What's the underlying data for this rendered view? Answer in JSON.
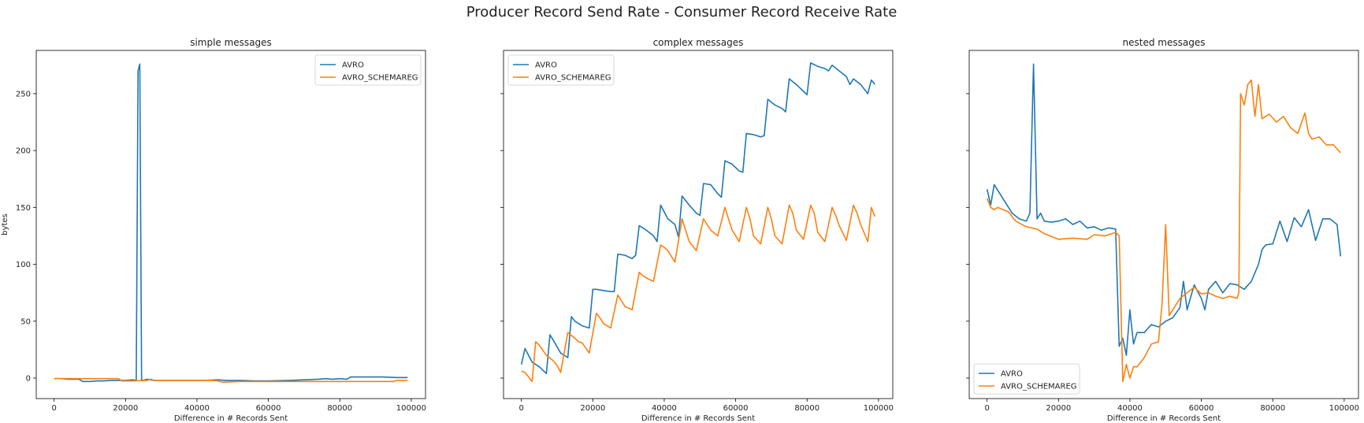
{
  "title": "Producer Record Send Rate - Consumer Record Receive Rate",
  "colors": {
    "AVRO": "#1f77b4",
    "AVRO_SCHEMAREG": "#ff7f0e"
  },
  "chart_data": [
    {
      "type": "line",
      "title": "simple messages",
      "xlabel": "Difference in # Records Sent",
      "ylabel": "bytes",
      "xlim": [
        -5000,
        104000
      ],
      "ylim": [
        -18,
        288
      ],
      "xticks": [
        0,
        20000,
        40000,
        60000,
        80000,
        100000
      ],
      "yticks": [
        0,
        50,
        100,
        150,
        200,
        250
      ],
      "show_ytick_labels": true,
      "legend": "top-right",
      "series": [
        {
          "name": "AVRO",
          "x": [
            0,
            2000,
            4000,
            6000,
            7000,
            8000,
            10000,
            12000,
            14000,
            16000,
            18000,
            20000,
            22000,
            23000,
            23500,
            24000,
            24500,
            25000,
            26000,
            28000,
            30000,
            34000,
            38000,
            42000,
            46000,
            48000,
            52000,
            56000,
            60000,
            66000,
            70000,
            74000,
            76000,
            78000,
            80000,
            82000,
            83000,
            84000,
            88000,
            92000,
            96000,
            99000
          ],
          "y": [
            -0.5,
            -0.5,
            -1,
            -1,
            -1,
            -3,
            -3,
            -2.5,
            -2.5,
            -2,
            -2,
            -2,
            -1.5,
            -2,
            270,
            276,
            -1.5,
            -2,
            -1,
            -2,
            -2,
            -2,
            -2,
            -2,
            -1.5,
            -2,
            -2,
            -2.5,
            -2.5,
            -2,
            -1.5,
            -1,
            -0.5,
            -1,
            -0.5,
            -1,
            1,
            1,
            1,
            1,
            0.5,
            0.5
          ]
        },
        {
          "name": "AVRO_SCHEMAREG",
          "x": [
            0,
            4000,
            8000,
            12000,
            16000,
            18000,
            19000,
            22000,
            26000,
            27000,
            28000,
            32000,
            36000,
            40000,
            44000,
            46000,
            47000,
            48000,
            52000,
            56000,
            60000,
            66000,
            72000,
            78000,
            84000,
            90000,
            95000,
            96000,
            99000
          ],
          "y": [
            -0.5,
            -0.5,
            -0.5,
            -0.5,
            -0.5,
            -0.5,
            -2.5,
            -2.5,
            -2,
            -1,
            -2,
            -2,
            -2,
            -2,
            -2,
            -2.5,
            -3.5,
            -3.5,
            -3,
            -3,
            -3,
            -3,
            -3,
            -3,
            -3,
            -3,
            -3,
            -2,
            -2
          ]
        }
      ]
    },
    {
      "type": "line",
      "title": "complex messages",
      "xlabel": "Difference in # Records Sent",
      "ylabel": "",
      "xlim": [
        -5000,
        104000
      ],
      "ylim": [
        -18,
        288
      ],
      "xticks": [
        0,
        20000,
        40000,
        60000,
        80000,
        100000
      ],
      "yticks": [
        0,
        50,
        100,
        150,
        200,
        250
      ],
      "show_ytick_labels": false,
      "legend": "top-left",
      "series": [
        {
          "name": "AVRO",
          "x": [
            0,
            1000,
            3000,
            5000,
            7000,
            8000,
            9000,
            11000,
            13000,
            14000,
            15000,
            17000,
            19000,
            20000,
            21000,
            23000,
            25000,
            26000,
            27000,
            29000,
            31000,
            32000,
            33000,
            35000,
            37000,
            38000,
            39000,
            41000,
            43000,
            44000,
            45000,
            47000,
            49000,
            50000,
            51000,
            53000,
            55000,
            56000,
            57000,
            59000,
            61000,
            62000,
            63000,
            65000,
            67000,
            68000,
            69000,
            71000,
            73000,
            74000,
            75000,
            77000,
            79000,
            80000,
            81000,
            83000,
            85000,
            86000,
            87000,
            89000,
            91000,
            92000,
            93000,
            95000,
            97000,
            98000,
            99000
          ],
          "y": [
            12,
            26,
            14,
            10,
            4,
            38,
            33,
            22,
            18,
            54,
            50,
            46,
            44,
            78,
            78,
            77,
            76,
            76,
            109,
            108,
            105,
            108,
            134,
            130,
            125,
            120,
            152,
            140,
            135,
            124,
            160,
            152,
            145,
            143,
            171,
            170,
            162,
            159,
            191,
            188,
            182,
            181,
            215,
            214,
            212,
            213,
            245,
            240,
            237,
            234,
            263,
            258,
            252,
            249,
            277,
            274,
            272,
            270,
            275,
            270,
            265,
            258,
            263,
            258,
            250,
            262,
            258
          ]
        },
        {
          "name": "AVRO_SCHEMAREG",
          "x": [
            0,
            1000,
            3000,
            4000,
            5000,
            7000,
            9000,
            10000,
            11000,
            13000,
            15000,
            16000,
            17000,
            19000,
            21000,
            22000,
            23000,
            25000,
            27000,
            28000,
            29000,
            31000,
            33000,
            34000,
            35000,
            37000,
            39000,
            40000,
            41000,
            43000,
            45000,
            46000,
            47000,
            49000,
            51000,
            52000,
            53000,
            55000,
            57000,
            58000,
            59000,
            61000,
            63000,
            64000,
            65000,
            67000,
            69000,
            70000,
            71000,
            73000,
            75000,
            76000,
            77000,
            79000,
            81000,
            82000,
            83000,
            85000,
            87000,
            88000,
            89000,
            91000,
            93000,
            94000,
            95000,
            97000,
            98000,
            99000
          ],
          "y": [
            6,
            5,
            -3,
            32,
            29,
            20,
            15,
            11,
            5,
            40,
            35,
            32,
            31,
            22,
            57,
            53,
            48,
            44,
            73,
            68,
            63,
            60,
            93,
            90,
            88,
            85,
            117,
            115,
            112,
            102,
            140,
            130,
            120,
            112,
            140,
            135,
            130,
            125,
            150,
            140,
            130,
            120,
            150,
            140,
            125,
            118,
            150,
            140,
            125,
            118,
            152,
            145,
            130,
            122,
            152,
            145,
            128,
            120,
            150,
            143,
            134,
            121,
            152,
            145,
            135,
            120,
            150,
            142
          ]
        }
      ]
    },
    {
      "type": "line",
      "title": "nested messages",
      "xlabel": "Difference in # Records Sent",
      "ylabel": "",
      "xlim": [
        -5000,
        104000
      ],
      "ylim": [
        -18,
        288
      ],
      "xticks": [
        0,
        20000,
        40000,
        60000,
        80000,
        100000
      ],
      "yticks": [
        0,
        50,
        100,
        150,
        200,
        250
      ],
      "show_ytick_labels": false,
      "legend": "bottom-left",
      "series": [
        {
          "name": "AVRO",
          "x": [
            0,
            1000,
            2000,
            3000,
            5000,
            7000,
            9000,
            11000,
            12000,
            13000,
            14000,
            15000,
            16000,
            18000,
            20000,
            22000,
            24000,
            26000,
            28000,
            30000,
            32000,
            34000,
            36000,
            37000,
            38000,
            39000,
            40000,
            41000,
            42000,
            44000,
            46000,
            48000,
            50000,
            52000,
            54000,
            55000,
            56000,
            58000,
            60000,
            61000,
            62000,
            64000,
            66000,
            68000,
            70000,
            72000,
            74000,
            76000,
            77000,
            78000,
            80000,
            82000,
            84000,
            86000,
            88000,
            90000,
            92000,
            94000,
            96000,
            98000,
            99000
          ],
          "y": [
            166,
            152,
            170,
            165,
            155,
            145,
            140,
            138,
            145,
            276,
            140,
            145,
            138,
            137,
            138,
            140,
            135,
            138,
            132,
            133,
            130,
            132,
            131,
            28,
            35,
            20,
            60,
            30,
            40,
            40,
            47,
            45,
            50,
            53,
            62,
            85,
            60,
            82,
            70,
            60,
            78,
            85,
            75,
            83,
            82,
            78,
            85,
            100,
            113,
            117,
            118,
            138,
            120,
            141,
            133,
            148,
            121,
            140,
            140,
            135,
            107
          ]
        },
        {
          "name": "AVRO_SCHEMAREG",
          "x": [
            0,
            1000,
            2000,
            3000,
            6000,
            8000,
            11000,
            14000,
            16000,
            20000,
            24000,
            28000,
            30000,
            33000,
            36000,
            37000,
            38000,
            39000,
            40000,
            41000,
            42000,
            44000,
            46000,
            48000,
            49000,
            50000,
            51000,
            52000,
            54000,
            56000,
            58000,
            60000,
            62000,
            64000,
            66000,
            68000,
            70000,
            70500,
            71000,
            72000,
            73000,
            74000,
            75000,
            76000,
            77000,
            79000,
            81000,
            83000,
            85000,
            87000,
            89000,
            90000,
            91000,
            93000,
            95000,
            97000,
            99000
          ],
          "y": [
            158,
            150,
            148,
            150,
            146,
            138,
            133,
            131,
            127,
            122,
            123,
            122,
            126,
            125,
            128,
            125,
            -3,
            12,
            0,
            10,
            10,
            18,
            30,
            32,
            65,
            135,
            55,
            60,
            70,
            75,
            80,
            74,
            75,
            72,
            70,
            72,
            70,
            75,
            250,
            240,
            258,
            262,
            230,
            258,
            228,
            232,
            225,
            230,
            220,
            215,
            233,
            215,
            210,
            212,
            205,
            205,
            198
          ]
        }
      ]
    }
  ]
}
